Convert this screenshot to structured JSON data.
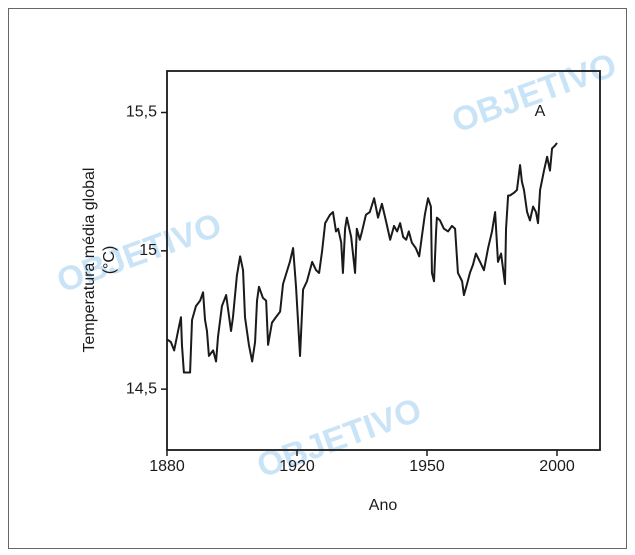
{
  "chart_data": {
    "type": "line",
    "xlabel": "Ano",
    "ylabel": [
      "Temperatura média global",
      "(°C)"
    ],
    "annotation": "A",
    "watermark": "OBJETIVO",
    "color": "#1a1a1a",
    "xlim": [
      1880,
      2016
    ],
    "xticks": [
      1880,
      1920,
      1950,
      2000
    ],
    "ylim": [
      14.28,
      15.65
    ],
    "yticks": [
      {
        "value": 14.5,
        "label": "14,5"
      },
      15,
      {
        "value": 15.5,
        "label": "15,5"
      }
    ],
    "x": [
      1880.0,
      1881.2,
      1882.2,
      1883.4,
      1884.3,
      1884.6,
      1885.2,
      1887.1,
      1887.7,
      1888.9,
      1890.2,
      1891.1,
      1891.7,
      1892.3,
      1892.9,
      1894.2,
      1895.1,
      1895.7,
      1896.9,
      1898.2,
      1899.7,
      1900.3,
      1901.5,
      1902.5,
      1903.4,
      1904.0,
      1905.2,
      1906.2,
      1907.1,
      1907.7,
      1908.3,
      1909.5,
      1910.5,
      1911.1,
      1912.3,
      1913.5,
      1914.8,
      1915.7,
      1917.8,
      1918.8,
      1919.7,
      1920.7,
      1921.4,
      1922.3,
      1923.5,
      1924.4,
      1925.1,
      1925.8,
      1926.5,
      1927.6,
      1928.3,
      1929.0,
      1929.5,
      1930.2,
      1930.6,
      1931.1,
      1931.5,
      1932.5,
      1933.4,
      1933.8,
      1934.5,
      1935.0,
      1935.9,
      1936.8,
      1937.8,
      1938.7,
      1939.6,
      1940.5,
      1941.5,
      1942.4,
      1943.1,
      1943.8,
      1944.5,
      1945.2,
      1945.8,
      1946.5,
      1947.4,
      1948.2,
      1948.8,
      1949.5,
      1950.4,
      1951.5,
      1951.9,
      1952.7,
      1953.5,
      1953.8,
      1955.0,
      1956.5,
      1958.1,
      1959.6,
      1960.8,
      1961.9,
      1963.5,
      1964.2,
      1965.4,
      1966.5,
      1967.7,
      1968.8,
      1970.4,
      1971.9,
      1973.5,
      1975.0,
      1976.2,
      1977.3,
      1978.5,
      1980.0,
      1980.4,
      1981.2,
      1981.9,
      1983.5,
      1984.6,
      1985.8,
      1986.5,
      1987.3,
      1988.5,
      1989.6,
      1990.8,
      1991.9,
      1992.7,
      1993.5,
      1995.0,
      1996.2,
      1997.3,
      1998.1,
      1999.2,
      2000.0
    ],
    "values": [
      14.68,
      14.67,
      14.64,
      14.71,
      14.76,
      14.66,
      14.56,
      14.56,
      14.75,
      14.8,
      14.82,
      14.85,
      14.75,
      14.71,
      14.62,
      14.64,
      14.6,
      14.69,
      14.8,
      14.84,
      14.71,
      14.76,
      14.91,
      14.98,
      14.93,
      14.76,
      14.66,
      14.6,
      14.67,
      14.82,
      14.87,
      14.83,
      14.82,
      14.66,
      14.74,
      14.76,
      14.78,
      14.88,
      14.96,
      15.01,
      14.87,
      14.62,
      14.86,
      14.89,
      14.96,
      14.93,
      14.92,
      15.0,
      15.1,
      15.13,
      15.14,
      15.07,
      15.08,
      15.03,
      14.92,
      15.08,
      15.12,
      15.05,
      14.92,
      15.08,
      15.04,
      15.07,
      15.13,
      15.14,
      15.19,
      15.12,
      15.17,
      15.11,
      15.04,
      15.09,
      15.07,
      15.1,
      15.05,
      15.04,
      15.07,
      15.03,
      15.01,
      14.98,
      15.05,
      15.13,
      15.19,
      15.16,
      14.92,
      14.89,
      15.07,
      15.12,
      15.11,
      15.08,
      15.07,
      15.09,
      15.08,
      14.92,
      14.89,
      14.84,
      14.88,
      14.92,
      14.95,
      14.99,
      14.96,
      14.93,
      15.01,
      15.07,
      15.14,
      14.96,
      14.99,
      14.88,
      15.08,
      15.2,
      15.2,
      15.21,
      15.22,
      15.31,
      15.25,
      15.22,
      15.14,
      15.11,
      15.16,
      15.14,
      15.1,
      15.22,
      15.29,
      15.34,
      15.29,
      15.37,
      15.38,
      15.39
    ]
  }
}
